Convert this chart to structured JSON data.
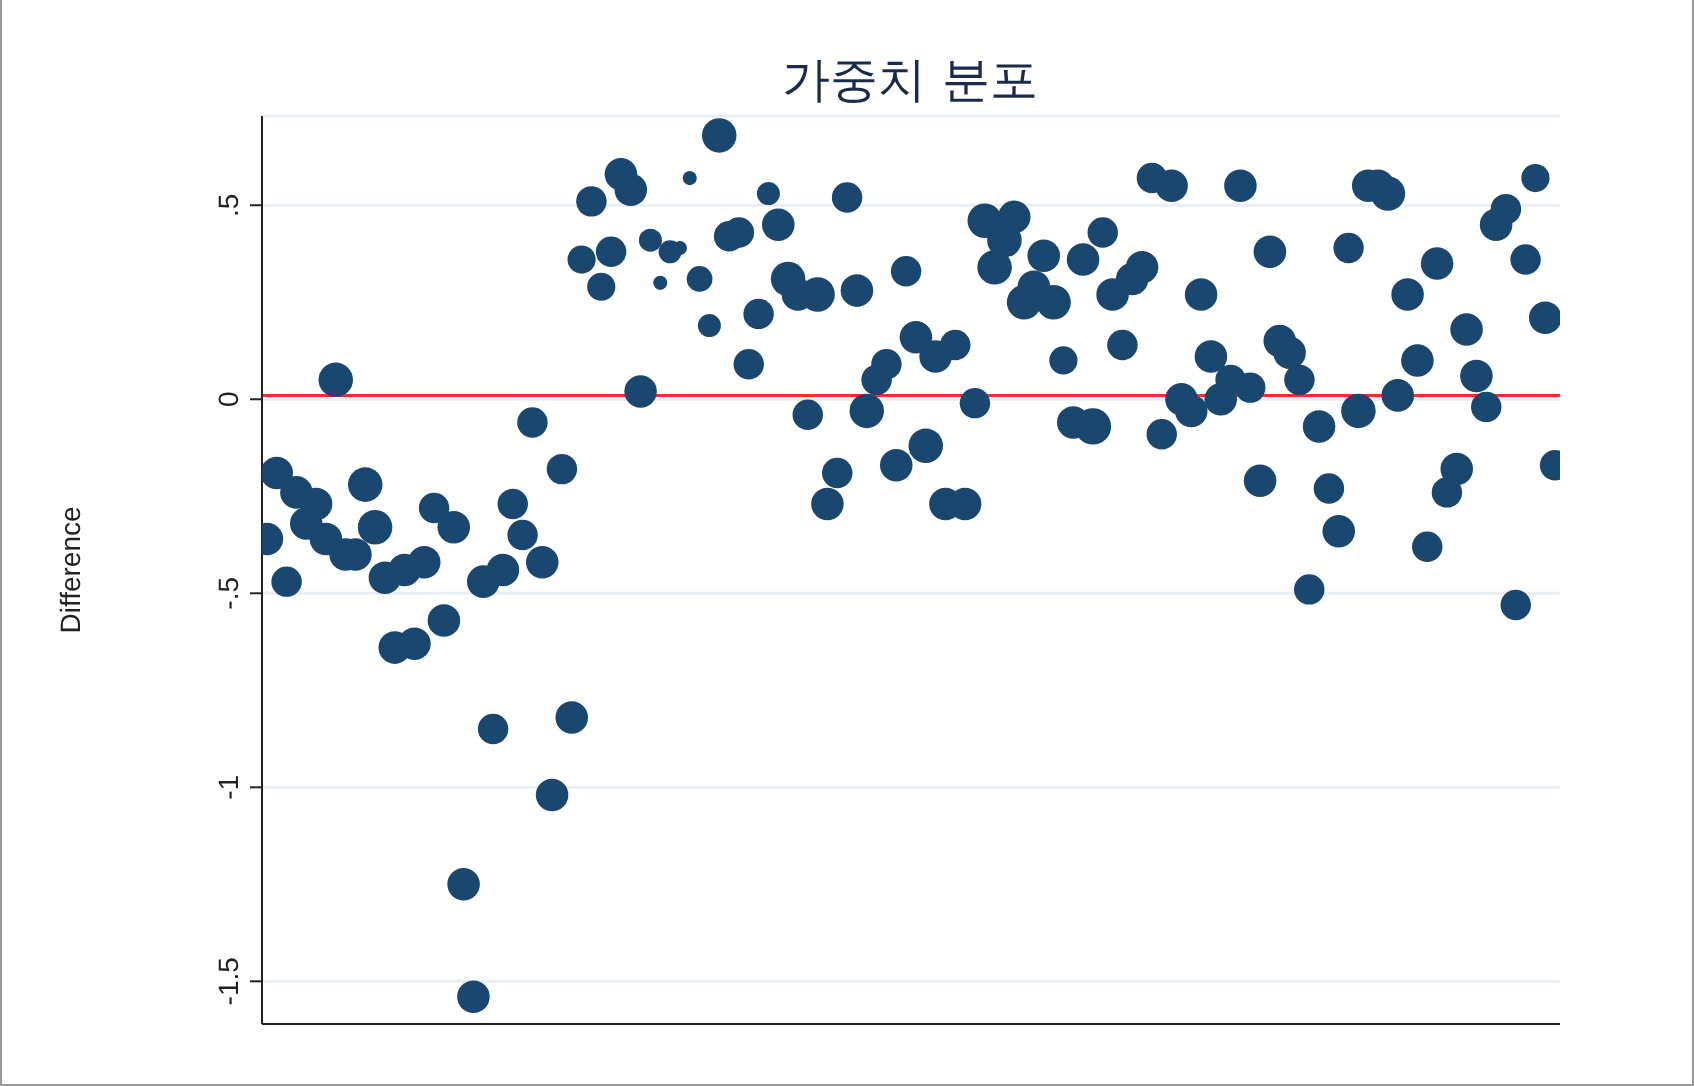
{
  "chart_data": {
    "type": "bubble",
    "title": "가중치 분포",
    "ylabel": "Difference",
    "categories": [
      null,
      null,
      null,
      null,
      null,
      null,
      null,
      null,
      null,
      null,
      null,
      null,
      null,
      null,
      null,
      null,
      null,
      null,
      null,
      null,
      null,
      null,
      null,
      null,
      null,
      null,
      null,
      null,
      null,
      null,
      null,
      null,
      null,
      null,
      null,
      null,
      null,
      null,
      null,
      null,
      null,
      null,
      null,
      null,
      null,
      null,
      null,
      null,
      null,
      null,
      null,
      null,
      null,
      null,
      null,
      null,
      null,
      null,
      null,
      null,
      null,
      null,
      null,
      null,
      null,
      null,
      null,
      null,
      null,
      null,
      null,
      null,
      null,
      null,
      null,
      null,
      null,
      null,
      null,
      null,
      null,
      null,
      null,
      null,
      null,
      null,
      null,
      null,
      null,
      null,
      null,
      null,
      null,
      null,
      null,
      null,
      null,
      null,
      null,
      null,
      null,
      null,
      null,
      null,
      null,
      null,
      null,
      null,
      null,
      null,
      null,
      null,
      null,
      null,
      null,
      null,
      null,
      null,
      null,
      null,
      null,
      null,
      null,
      null,
      null,
      null,
      null,
      null,
      null,
      null,
      null,
      null
    ],
    "values": [
      -0.36,
      -0.19,
      -0.47,
      -0.24,
      -0.32,
      -0.27,
      -0.36,
      0.05,
      -0.4,
      -0.4,
      -0.22,
      -0.33,
      -0.46,
      -0.64,
      -0.44,
      -0.63,
      -0.42,
      -0.28,
      -0.57,
      -0.33,
      -1.25,
      -1.54,
      -0.47,
      -0.85,
      -0.44,
      -0.27,
      -0.35,
      -0.06,
      -0.42,
      -1.02,
      -0.18,
      -0.82,
      0.36,
      0.51,
      0.29,
      0.38,
      0.58,
      0.54,
      0.02,
      0.41,
      0.3,
      0.38,
      0.39,
      0.57,
      0.31,
      0.19,
      0.68,
      0.42,
      0.43,
      0.09,
      0.22,
      0.53,
      0.45,
      0.31,
      0.27,
      -0.04,
      0.27,
      -0.27,
      -0.19,
      0.52,
      0.28,
      -0.03,
      0.05,
      0.09,
      -0.17,
      0.33,
      0.16,
      -0.12,
      0.11,
      -0.27,
      0.14,
      -0.27,
      -0.01,
      0.46,
      0.34,
      0.41,
      0.47,
      0.25,
      0.29,
      0.37,
      0.25,
      0.1,
      -0.06,
      0.36,
      -0.07,
      0.43,
      0.27,
      0.14,
      0.31,
      0.34,
      0.57,
      -0.09,
      0.55,
      0,
      -0.03,
      0.27,
      0.11,
      0,
      0.05,
      0.55,
      0.03,
      -0.21,
      0.38,
      0.15,
      0.12,
      0.05,
      -0.49,
      -0.07,
      -0.23,
      -0.34,
      0.39,
      -0.03,
      0.55,
      0.55,
      0.53,
      0.01,
      0.27,
      0.1,
      -0.38,
      0.35,
      -0.24,
      -0.18,
      0.18,
      0.06,
      -0.02,
      0.45,
      0.49,
      -0.53,
      0.36,
      0.57,
      0.21,
      -0.17
    ],
    "sizes": [
      0.8,
      0.8,
      0.7,
      0.8,
      0.8,
      0.8,
      0.8,
      0.9,
      0.8,
      0.8,
      0.9,
      0.9,
      0.8,
      0.8,
      0.8,
      0.8,
      0.8,
      0.7,
      0.8,
      0.8,
      0.8,
      0.8,
      0.8,
      0.7,
      0.8,
      0.7,
      0.7,
      0.7,
      0.8,
      0.8,
      0.7,
      0.8,
      0.6,
      0.7,
      0.6,
      0.7,
      0.8,
      0.8,
      0.8,
      0.4,
      0.15,
      0.4,
      0.15,
      0.15,
      0.5,
      0.4,
      0.9,
      0.7,
      0.7,
      0.7,
      0.7,
      0.4,
      0.8,
      0.9,
      0.8,
      0.7,
      0.9,
      0.8,
      0.7,
      0.7,
      0.8,
      0.9,
      0.7,
      0.7,
      0.8,
      0.7,
      0.8,
      0.9,
      0.8,
      0.8,
      0.7,
      0.8,
      0.7,
      0.9,
      0.9,
      0.9,
      0.8,
      0.9,
      0.8,
      0.8,
      0.9,
      0.6,
      0.8,
      0.8,
      1,
      0.7,
      0.8,
      0.7,
      0.8,
      0.8,
      0.7,
      0.7,
      0.8,
      0.8,
      0.8,
      0.8,
      0.8,
      0.8,
      0.7,
      0.8,
      0.7,
      0.8,
      0.8,
      0.8,
      0.8,
      0.7,
      0.7,
      0.8,
      0.7,
      0.8,
      0.7,
      0.9,
      0.8,
      0.8,
      0.9,
      0.8,
      0.8,
      0.8,
      0.7,
      0.8,
      0.7,
      0.8,
      0.8,
      0.8,
      0.7,
      0.8,
      0.7,
      0.7,
      0.7,
      0.6,
      0.8,
      0.7
    ],
    "color": "#1a476f",
    "ylim": [
      -1.61,
      0.73
    ],
    "yticks": [
      {
        "value": -1.5,
        "label": "-1.5"
      },
      {
        "value": -1,
        "label": "-1"
      },
      {
        "value": -0.5,
        "label": "-.5"
      },
      {
        "value": 0,
        "label": "0"
      },
      {
        "value": 0.5,
        "label": ".5"
      }
    ],
    "grid": "y",
    "ref_lines": [
      {
        "axis": "y",
        "value": 0.01,
        "color": "#ff2a2a"
      }
    ]
  }
}
